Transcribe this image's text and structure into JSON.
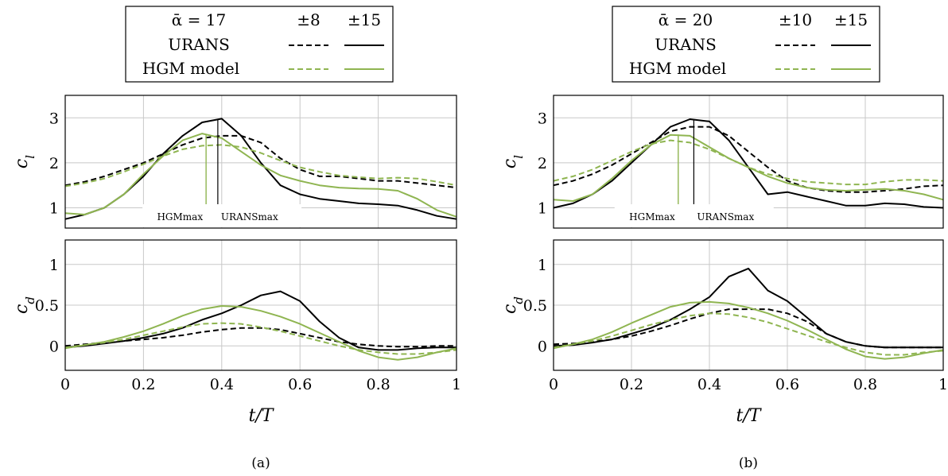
{
  "colors": {
    "urans": "#000000",
    "hgm": "#8fb551",
    "grid": "#c8c8c8"
  },
  "panels": [
    {
      "id": "a",
      "caption": "(a)",
      "legend": {
        "alpha_label": "ᾱ = 17",
        "amp1": "±8",
        "amp2": "±15",
        "row_urans": "URANS",
        "row_hgm": "HGM model"
      },
      "xlabel": "t/T",
      "x_ticks": [
        "0",
        "0.2",
        "0.4",
        "0.6",
        "0.8",
        "1"
      ],
      "annotation": {
        "hgm": "HGMmax",
        "urans": "URANSmax",
        "hgm_x": 0.36,
        "urans_x": 0.39
      }
    },
    {
      "id": "b",
      "caption": "(b)",
      "legend": {
        "alpha_label": "ᾱ = 20",
        "amp1": "±10",
        "amp2": "±15",
        "row_urans": "URANS",
        "row_hgm": "HGM model"
      },
      "xlabel": "t/T",
      "x_ticks": [
        "0",
        "0.2",
        "0.4",
        "0.6",
        "0.8",
        "1"
      ],
      "annotation": {
        "hgm": "HGMmax",
        "urans": "URANSmax",
        "hgm_x": 0.32,
        "urans_x": 0.36
      }
    }
  ],
  "chart_data": [
    {
      "type": "line",
      "panel": "a-top",
      "ylabel": "c_l",
      "xlim": [
        0,
        1
      ],
      "ylim": [
        0.55,
        3.5
      ],
      "yticks": [
        1,
        2,
        3
      ],
      "x": [
        0,
        0.05,
        0.1,
        0.15,
        0.2,
        0.25,
        0.3,
        0.35,
        0.4,
        0.45,
        0.5,
        0.55,
        0.6,
        0.65,
        0.7,
        0.75,
        0.8,
        0.85,
        0.9,
        0.95,
        1.0
      ],
      "series": [
        {
          "name": "URANS ±8",
          "style": "dashed",
          "color": "urans",
          "values": [
            1.5,
            1.58,
            1.7,
            1.85,
            2.0,
            2.2,
            2.4,
            2.55,
            2.6,
            2.6,
            2.45,
            2.1,
            1.85,
            1.7,
            1.7,
            1.65,
            1.6,
            1.6,
            1.55,
            1.5,
            1.45
          ]
        },
        {
          "name": "URANS ±15",
          "style": "solid",
          "color": "urans",
          "values": [
            0.75,
            0.85,
            1.0,
            1.3,
            1.7,
            2.2,
            2.6,
            2.9,
            2.98,
            2.6,
            2.0,
            1.5,
            1.3,
            1.2,
            1.15,
            1.1,
            1.08,
            1.05,
            0.95,
            0.82,
            0.75
          ]
        },
        {
          "name": "HGM model ±8",
          "style": "dashed",
          "color": "hgm",
          "values": [
            1.48,
            1.55,
            1.65,
            1.8,
            1.97,
            2.15,
            2.3,
            2.38,
            2.4,
            2.35,
            2.22,
            2.05,
            1.9,
            1.8,
            1.72,
            1.68,
            1.65,
            1.67,
            1.65,
            1.58,
            1.5
          ]
        },
        {
          "name": "HGM model ±15",
          "style": "solid",
          "color": "hgm",
          "values": [
            0.88,
            0.85,
            1.0,
            1.3,
            1.75,
            2.15,
            2.5,
            2.65,
            2.55,
            2.25,
            1.95,
            1.72,
            1.6,
            1.5,
            1.45,
            1.43,
            1.42,
            1.38,
            1.2,
            0.95,
            0.8
          ]
        }
      ]
    },
    {
      "type": "line",
      "panel": "a-bottom",
      "ylabel": "c_d",
      "xlim": [
        0,
        1
      ],
      "ylim": [
        -0.3,
        1.3
      ],
      "yticks": [
        0,
        0.5,
        1
      ],
      "x": [
        0,
        0.05,
        0.1,
        0.15,
        0.2,
        0.25,
        0.3,
        0.35,
        0.4,
        0.45,
        0.5,
        0.55,
        0.6,
        0.65,
        0.7,
        0.75,
        0.8,
        0.85,
        0.9,
        0.95,
        1.0
      ],
      "series": [
        {
          "name": "URANS ±8",
          "style": "dashed",
          "color": "urans",
          "values": [
            0.0,
            0.02,
            0.04,
            0.06,
            0.08,
            0.1,
            0.13,
            0.17,
            0.2,
            0.22,
            0.22,
            0.2,
            0.15,
            0.1,
            0.05,
            0.02,
            0.0,
            -0.01,
            -0.01,
            0.0,
            0.0
          ]
        },
        {
          "name": "URANS ±15",
          "style": "solid",
          "color": "urans",
          "values": [
            -0.02,
            0.0,
            0.03,
            0.06,
            0.1,
            0.15,
            0.22,
            0.32,
            0.4,
            0.5,
            0.62,
            0.67,
            0.55,
            0.3,
            0.1,
            -0.02,
            -0.05,
            -0.05,
            -0.03,
            -0.02,
            -0.02
          ]
        },
        {
          "name": "HGM model ±8",
          "style": "dashed",
          "color": "hgm",
          "values": [
            -0.02,
            0.01,
            0.04,
            0.08,
            0.13,
            0.18,
            0.23,
            0.27,
            0.28,
            0.27,
            0.23,
            0.18,
            0.12,
            0.06,
            0.0,
            -0.05,
            -0.08,
            -0.1,
            -0.1,
            -0.08,
            -0.05
          ]
        },
        {
          "name": "HGM model ±15",
          "style": "solid",
          "color": "hgm",
          "values": [
            -0.03,
            0.01,
            0.05,
            0.11,
            0.18,
            0.27,
            0.37,
            0.45,
            0.49,
            0.48,
            0.43,
            0.36,
            0.27,
            0.16,
            0.05,
            -0.06,
            -0.14,
            -0.17,
            -0.14,
            -0.08,
            -0.03
          ]
        }
      ]
    },
    {
      "type": "line",
      "panel": "b-top",
      "ylabel": "c_l",
      "xlim": [
        0,
        1
      ],
      "ylim": [
        0.55,
        3.5
      ],
      "yticks": [
        1,
        2,
        3
      ],
      "x": [
        0,
        0.05,
        0.1,
        0.15,
        0.2,
        0.25,
        0.3,
        0.35,
        0.4,
        0.45,
        0.5,
        0.55,
        0.6,
        0.65,
        0.7,
        0.75,
        0.8,
        0.85,
        0.9,
        0.95,
        1.0
      ],
      "series": [
        {
          "name": "URANS ±10",
          "style": "dashed",
          "color": "urans",
          "values": [
            1.5,
            1.6,
            1.75,
            1.95,
            2.2,
            2.45,
            2.7,
            2.8,
            2.8,
            2.6,
            2.25,
            1.9,
            1.6,
            1.45,
            1.38,
            1.35,
            1.35,
            1.38,
            1.42,
            1.48,
            1.5
          ]
        },
        {
          "name": "URANS ±15",
          "style": "solid",
          "color": "urans",
          "values": [
            1.0,
            1.1,
            1.3,
            1.6,
            2.0,
            2.4,
            2.8,
            2.97,
            2.92,
            2.5,
            1.9,
            1.3,
            1.35,
            1.25,
            1.15,
            1.05,
            1.05,
            1.1,
            1.08,
            1.02,
            1.0
          ]
        },
        {
          "name": "HGM model ±10",
          "style": "dashed",
          "color": "hgm",
          "values": [
            1.6,
            1.7,
            1.85,
            2.05,
            2.25,
            2.42,
            2.5,
            2.45,
            2.3,
            2.1,
            1.9,
            1.75,
            1.65,
            1.58,
            1.55,
            1.52,
            1.52,
            1.58,
            1.62,
            1.62,
            1.6
          ]
        },
        {
          "name": "HGM model ±15",
          "style": "solid",
          "color": "hgm",
          "values": [
            1.18,
            1.15,
            1.3,
            1.65,
            2.05,
            2.4,
            2.62,
            2.6,
            2.35,
            2.1,
            1.9,
            1.7,
            1.55,
            1.45,
            1.4,
            1.38,
            1.4,
            1.42,
            1.38,
            1.3,
            1.18
          ]
        }
      ]
    },
    {
      "type": "line",
      "panel": "b-bottom",
      "ylabel": "c_d",
      "xlim": [
        0,
        1
      ],
      "ylim": [
        -0.3,
        1.3
      ],
      "yticks": [
        0,
        0.5,
        1
      ],
      "x": [
        0,
        0.05,
        0.1,
        0.15,
        0.2,
        0.25,
        0.3,
        0.35,
        0.4,
        0.45,
        0.5,
        0.55,
        0.6,
        0.65,
        0.7,
        0.75,
        0.8,
        0.85,
        0.9,
        0.95,
        1.0
      ],
      "series": [
        {
          "name": "URANS ±10",
          "style": "dashed",
          "color": "urans",
          "values": [
            0.02,
            0.03,
            0.05,
            0.08,
            0.12,
            0.18,
            0.25,
            0.33,
            0.4,
            0.45,
            0.45,
            0.45,
            0.4,
            0.3,
            0.15,
            0.05,
            0.0,
            -0.02,
            -0.02,
            -0.02,
            -0.02
          ]
        },
        {
          "name": "URANS ±15",
          "style": "solid",
          "color": "urans",
          "values": [
            0.0,
            0.01,
            0.04,
            0.08,
            0.15,
            0.22,
            0.32,
            0.45,
            0.6,
            0.85,
            0.95,
            0.68,
            0.55,
            0.35,
            0.15,
            0.05,
            0.0,
            -0.02,
            -0.02,
            -0.02,
            -0.02
          ]
        },
        {
          "name": "HGM model ±10",
          "style": "dashed",
          "color": "hgm",
          "values": [
            -0.02,
            0.02,
            0.06,
            0.12,
            0.19,
            0.26,
            0.32,
            0.37,
            0.4,
            0.39,
            0.35,
            0.29,
            0.21,
            0.13,
            0.05,
            -0.02,
            -0.08,
            -0.11,
            -0.11,
            -0.08,
            -0.06
          ]
        },
        {
          "name": "HGM model ±15",
          "style": "solid",
          "color": "hgm",
          "values": [
            -0.03,
            0.02,
            0.08,
            0.17,
            0.28,
            0.38,
            0.48,
            0.53,
            0.54,
            0.52,
            0.47,
            0.4,
            0.31,
            0.2,
            0.08,
            -0.04,
            -0.13,
            -0.16,
            -0.14,
            -0.09,
            -0.05
          ]
        }
      ]
    }
  ]
}
